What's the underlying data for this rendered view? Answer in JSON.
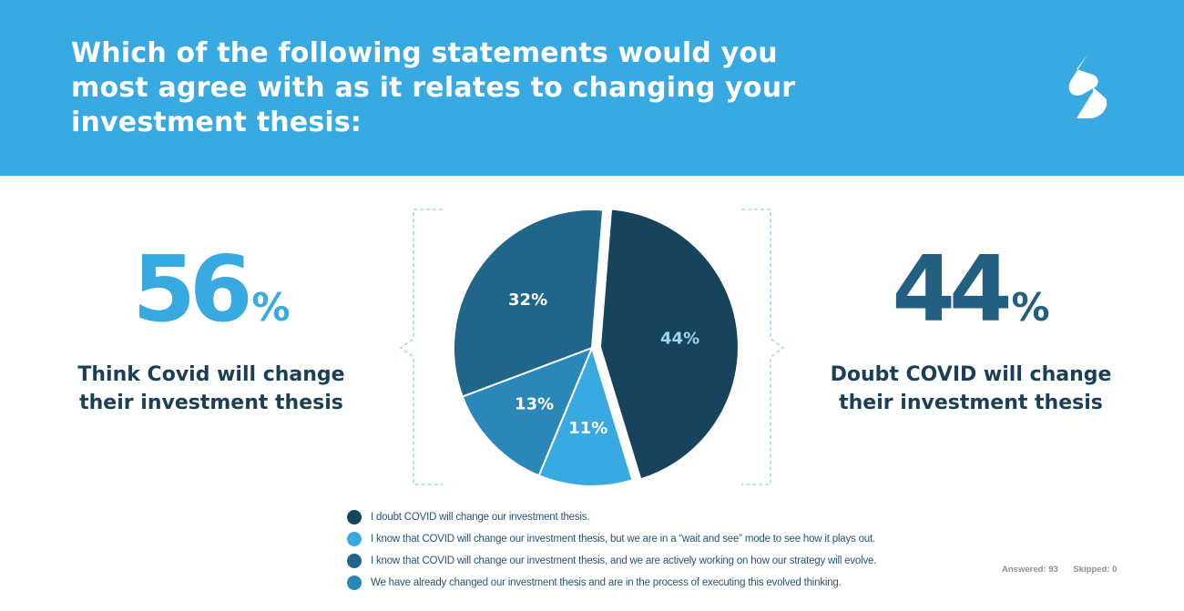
{
  "header": {
    "title": "Which of the following statements would you most agree with as it relates to changing your investment thesis:",
    "background_color": "#38aae1",
    "logo_icon": "s-logo-icon"
  },
  "left_stat": {
    "number": "56",
    "percent_sign": "%",
    "caption_line1": "Think Covid will change",
    "caption_line2": "their investment thesis",
    "color": "#38aae1"
  },
  "right_stat": {
    "number": "44",
    "percent_sign": "%",
    "caption_line1": "Doubt COVID will change",
    "caption_line2": "their investment thesis",
    "color": "#225f80"
  },
  "chart_data": {
    "type": "pie",
    "slices": [
      {
        "label": "I doubt COVID will change our investment thesis.",
        "value": 44,
        "value_label": "44%",
        "color": "#17435c",
        "exploded": true
      },
      {
        "label": "I know that COVID will change our investment thesis, but we are in a “wait and see” mode to see how it plays out.",
        "value": 11,
        "value_label": "11%",
        "color": "#38aae1"
      },
      {
        "label": "We have already changed our investment thesis and are in the process of executing this evolved thinking.",
        "value": 13,
        "value_label": "13%",
        "color": "#2a87b8"
      },
      {
        "label": "I know that COVID will change our investment thesis, and we are actively working on how our strategy will evolve.",
        "value": 32,
        "value_label": "32%",
        "color": "#22658a"
      }
    ],
    "label_colors": {
      "light_slices": "#ffffff",
      "dark_slice": "#9fd8f5"
    }
  },
  "legend": {
    "items": [
      {
        "label": "I doubt COVID will change our investment thesis.",
        "color": "#17435c"
      },
      {
        "label": "I know that COVID will change our investment thesis, but we are in a “wait and see” mode to see how it plays out.",
        "color": "#38aae1"
      },
      {
        "label": "I know that COVID will change our investment thesis, and we are actively working on how our strategy will evolve.",
        "color": "#22658a"
      },
      {
        "label": "We have already changed our investment thesis and are in the process of executing this evolved thinking.",
        "color": "#2a87b8"
      }
    ]
  },
  "footer": {
    "answered": "Answered: 93",
    "skipped": "Skipped: 0"
  }
}
